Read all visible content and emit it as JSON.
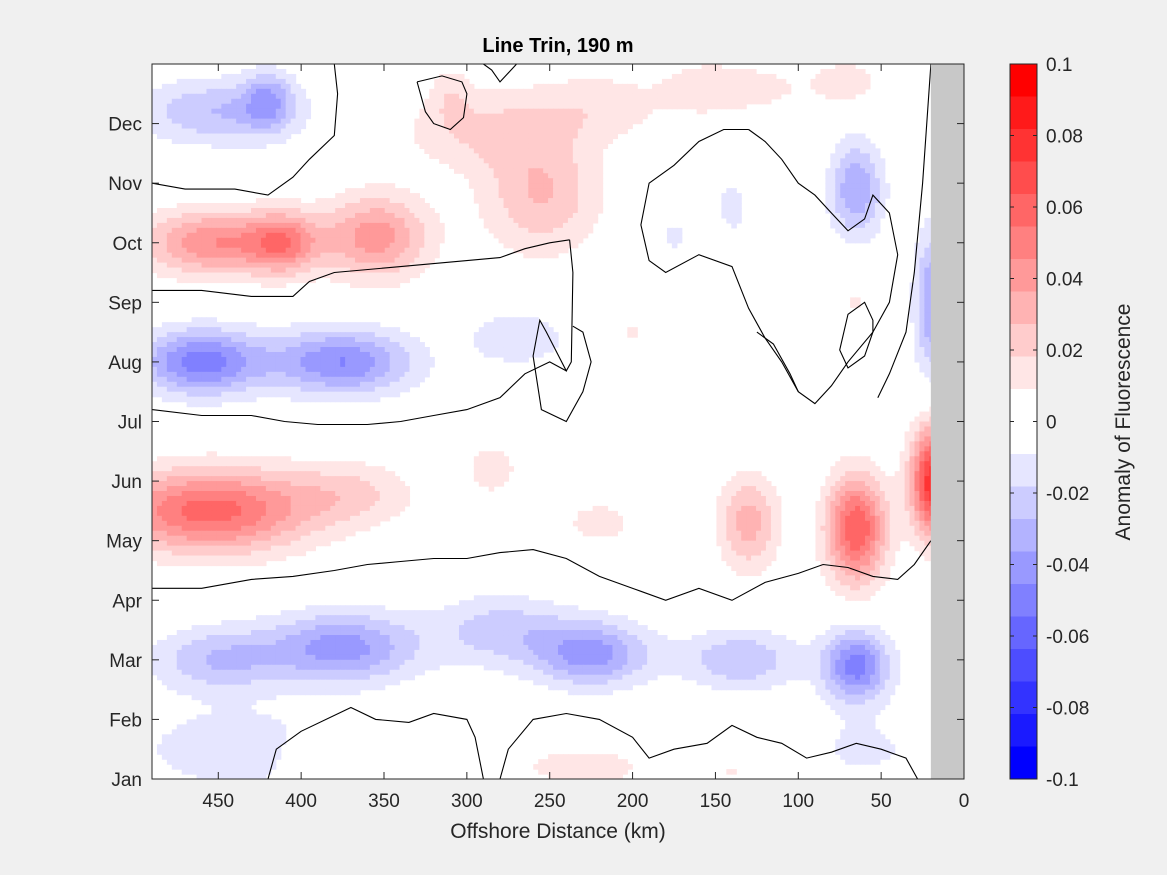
{
  "chart_data": {
    "type": "heatmap",
    "title": "Line Trin, 190 m",
    "xlabel": "Offshore Distance (km)",
    "ylabel": "",
    "xlim": [
      490,
      0
    ],
    "x_ticks": [
      450,
      400,
      350,
      300,
      250,
      200,
      150,
      100,
      50,
      0
    ],
    "y_tick_labels": [
      "Dec",
      "Nov",
      "Oct",
      "Sep",
      "Aug",
      "Jul",
      "Jun",
      "May",
      "Apr",
      "Mar",
      "Feb",
      "Jan"
    ],
    "y_tick_positions": [
      12,
      11,
      10,
      9,
      8,
      7,
      6,
      5,
      4,
      3,
      2,
      1
    ],
    "ylim": [
      1,
      13
    ],
    "land_mask_x_range": [
      20,
      0
    ],
    "land_mask_color": "#c8c8c8",
    "colorbar": {
      "label": "Anomaly of Fluorescence",
      "limits": [
        -0.1,
        0.1
      ],
      "tick_labels": [
        "0.1",
        "0.08",
        "0.06",
        "0.04",
        "0.02",
        "0",
        "-0.02",
        "-0.04",
        "-0.06",
        "-0.08",
        "-0.1"
      ],
      "tick_values": [
        0.1,
        0.08,
        0.06,
        0.04,
        0.02,
        0,
        -0.02,
        -0.04,
        -0.06,
        -0.08,
        -0.1
      ],
      "levels": 20,
      "colors_top_to_bottom": [
        "#ff0000",
        "#ff1a1a",
        "#ff3333",
        "#ff4d4d",
        "#ff6666",
        "#ff8080",
        "#ff9999",
        "#ffb3b3",
        "#ffcccc",
        "#ffe6e6",
        "#ffffff",
        "#ffffff",
        "#e6e6ff",
        "#ccccff",
        "#b3b3ff",
        "#9999ff",
        "#8080ff",
        "#6666ff",
        "#4d4dff",
        "#3333ff",
        "#1a1aff",
        "#0000ff"
      ]
    },
    "blobs": [
      {
        "x": 460,
        "y": 8.0,
        "rx": 38,
        "ry": 0.55,
        "value": -0.055
      },
      {
        "x": 375,
        "y": 8.0,
        "rx": 42,
        "ry": 0.55,
        "value": -0.05
      },
      {
        "x": 270,
        "y": 8.4,
        "rx": 30,
        "ry": 0.45,
        "value": -0.02
      },
      {
        "x": 450,
        "y": 10.0,
        "rx": 45,
        "ry": 0.55,
        "value": 0.05
      },
      {
        "x": 355,
        "y": 10.1,
        "rx": 32,
        "ry": 0.7,
        "value": 0.045
      },
      {
        "x": 410,
        "y": 10.0,
        "rx": 20,
        "ry": 0.5,
        "value": 0.04
      },
      {
        "x": 455,
        "y": 5.5,
        "rx": 60,
        "ry": 0.7,
        "value": 0.065
      },
      {
        "x": 370,
        "y": 5.8,
        "rx": 40,
        "ry": 0.55,
        "value": 0.02
      },
      {
        "x": 450,
        "y": 12.2,
        "rx": 50,
        "ry": 0.55,
        "value": -0.03
      },
      {
        "x": 420,
        "y": 12.4,
        "rx": 15,
        "ry": 0.5,
        "value": -0.03
      },
      {
        "x": 255,
        "y": 10.8,
        "rx": 35,
        "ry": 1.0,
        "value": 0.03
      },
      {
        "x": 290,
        "y": 11.9,
        "rx": 50,
        "ry": 0.7,
        "value": 0.02
      },
      {
        "x": 220,
        "y": 12.3,
        "rx": 40,
        "ry": 0.6,
        "value": 0.015
      },
      {
        "x": 375,
        "y": 3.2,
        "rx": 45,
        "ry": 0.6,
        "value": -0.045
      },
      {
        "x": 450,
        "y": 3.0,
        "rx": 40,
        "ry": 0.55,
        "value": -0.03
      },
      {
        "x": 280,
        "y": 3.5,
        "rx": 40,
        "ry": 0.6,
        "value": -0.025
      },
      {
        "x": 225,
        "y": 3.1,
        "rx": 35,
        "ry": 0.55,
        "value": -0.045
      },
      {
        "x": 135,
        "y": 3.0,
        "rx": 35,
        "ry": 0.5,
        "value": -0.03
      },
      {
        "x": 65,
        "y": 2.9,
        "rx": 20,
        "ry": 0.6,
        "value": -0.055
      },
      {
        "x": 65,
        "y": 5.2,
        "rx": 18,
        "ry": 0.9,
        "value": 0.07
      },
      {
        "x": 130,
        "y": 5.3,
        "rx": 18,
        "ry": 0.8,
        "value": 0.035
      },
      {
        "x": 18,
        "y": 6.0,
        "rx": 14,
        "ry": 0.9,
        "value": 0.09
      },
      {
        "x": 220,
        "y": 5.3,
        "rx": 35,
        "ry": 0.6,
        "value": 0.012
      },
      {
        "x": 285,
        "y": 6.2,
        "rx": 18,
        "ry": 0.5,
        "value": 0.015
      },
      {
        "x": 65,
        "y": 10.9,
        "rx": 16,
        "ry": 0.8,
        "value": -0.04
      },
      {
        "x": 20,
        "y": 9.0,
        "rx": 10,
        "ry": 1.2,
        "value": -0.04
      },
      {
        "x": 140,
        "y": 10.6,
        "rx": 10,
        "ry": 0.5,
        "value": -0.015
      },
      {
        "x": 175,
        "y": 10.1,
        "rx": 12,
        "ry": 0.35,
        "value": -0.012
      },
      {
        "x": 400,
        "y": 1.3,
        "rx": 12,
        "ry": 0.4,
        "value": 0.015
      },
      {
        "x": 230,
        "y": 1.2,
        "rx": 45,
        "ry": 0.4,
        "value": 0.015
      },
      {
        "x": 140,
        "y": 1.1,
        "rx": 25,
        "ry": 0.35,
        "value": 0.01
      },
      {
        "x": 440,
        "y": 1.5,
        "rx": 60,
        "ry": 0.7,
        "value": -0.018
      },
      {
        "x": 60,
        "y": 1.5,
        "rx": 40,
        "ry": 0.6,
        "value": -0.012
      },
      {
        "x": 310,
        "y": 12.5,
        "rx": 12,
        "ry": 0.5,
        "value": 0.012
      },
      {
        "x": 125,
        "y": 12.6,
        "rx": 40,
        "ry": 0.5,
        "value": 0.012
      },
      {
        "x": 160,
        "y": 12.6,
        "rx": 25,
        "ry": 0.5,
        "value": 0.01
      },
      {
        "x": 70,
        "y": 12.7,
        "rx": 20,
        "ry": 0.4,
        "value": 0.015
      },
      {
        "x": 200,
        "y": 8.5,
        "rx": 8,
        "ry": 0.3,
        "value": 0.012
      },
      {
        "x": 65,
        "y": 9.0,
        "rx": 6,
        "ry": 0.2,
        "value": 0.015
      }
    ],
    "contours_zero": [
      [
        [
          490,
          11.0
        ],
        [
          470,
          10.9
        ],
        [
          440,
          10.9
        ],
        [
          420,
          10.8
        ],
        [
          405,
          11.1
        ],
        [
          395,
          11.4
        ],
        [
          380,
          11.8
        ],
        [
          378,
          12.5
        ],
        [
          380,
          13.0
        ]
      ],
      [
        [
          490,
          9.2
        ],
        [
          460,
          9.2
        ],
        [
          430,
          9.1
        ],
        [
          405,
          9.1
        ],
        [
          395,
          9.35
        ],
        [
          380,
          9.5
        ],
        [
          340,
          9.6
        ],
        [
          300,
          9.7
        ],
        [
          280,
          9.75
        ],
        [
          265,
          9.9
        ],
        [
          250,
          10.0
        ],
        [
          238,
          10.05
        ]
      ],
      [
        [
          238,
          10.05
        ],
        [
          236,
          9.5
        ],
        [
          237,
          8.0
        ],
        [
          240,
          7.85
        ],
        [
          252,
          8.5
        ],
        [
          256,
          8.7
        ],
        [
          260,
          8.1
        ],
        [
          255,
          7.2
        ],
        [
          240,
          7.0
        ],
        [
          230,
          7.5
        ],
        [
          225,
          8.0
        ],
        [
          230,
          8.5
        ],
        [
          236,
          8.6
        ]
      ],
      [
        [
          490,
          7.2
        ],
        [
          460,
          7.1
        ],
        [
          430,
          7.1
        ],
        [
          410,
          7.0
        ],
        [
          390,
          6.95
        ],
        [
          360,
          6.95
        ],
        [
          340,
          7.0
        ],
        [
          320,
          7.1
        ],
        [
          300,
          7.2
        ],
        [
          280,
          7.4
        ],
        [
          265,
          7.8
        ],
        [
          250,
          8.0
        ],
        [
          240,
          7.85
        ]
      ],
      [
        [
          490,
          4.2
        ],
        [
          460,
          4.2
        ],
        [
          430,
          4.35
        ],
        [
          405,
          4.4
        ],
        [
          380,
          4.5
        ],
        [
          360,
          4.6
        ],
        [
          340,
          4.65
        ],
        [
          320,
          4.7
        ],
        [
          300,
          4.7
        ],
        [
          280,
          4.8
        ],
        [
          260,
          4.85
        ],
        [
          240,
          4.7
        ],
        [
          220,
          4.4
        ],
        [
          195,
          4.15
        ],
        [
          180,
          4.0
        ],
        [
          160,
          4.2
        ],
        [
          140,
          4.0
        ],
        [
          120,
          4.3
        ],
        [
          100,
          4.45
        ],
        [
          85,
          4.6
        ],
        [
          70,
          4.55
        ],
        [
          55,
          4.4
        ],
        [
          40,
          4.35
        ],
        [
          30,
          4.6
        ],
        [
          20,
          5.0
        ]
      ],
      [
        [
          420,
          1.0
        ],
        [
          415,
          1.5
        ],
        [
          400,
          1.8
        ],
        [
          370,
          2.2
        ],
        [
          355,
          2.0
        ],
        [
          335,
          1.95
        ],
        [
          320,
          2.1
        ],
        [
          300,
          2.0
        ],
        [
          295,
          1.7
        ],
        [
          290,
          1.0
        ]
      ],
      [
        [
          280,
          1.0
        ],
        [
          275,
          1.5
        ],
        [
          260,
          2.0
        ],
        [
          240,
          2.1
        ],
        [
          220,
          2.0
        ],
        [
          200,
          1.7
        ],
        [
          190,
          1.35
        ],
        [
          175,
          1.5
        ],
        [
          155,
          1.6
        ],
        [
          140,
          1.9
        ],
        [
          125,
          1.7
        ],
        [
          110,
          1.6
        ],
        [
          95,
          1.35
        ],
        [
          80,
          1.45
        ],
        [
          65,
          1.6
        ],
        [
          50,
          1.5
        ],
        [
          35,
          1.35
        ],
        [
          28,
          1.0
        ]
      ],
      [
        [
          270,
          13.0
        ],
        [
          280,
          12.7
        ],
        [
          285,
          12.9
        ],
        [
          290,
          13.0
        ]
      ],
      [
        [
          330,
          12.7
        ],
        [
          325,
          12.2
        ],
        [
          320,
          12.0
        ],
        [
          310,
          11.9
        ],
        [
          302,
          12.1
        ],
        [
          300,
          12.5
        ],
        [
          303,
          12.7
        ],
        [
          315,
          12.8
        ],
        [
          330,
          12.7
        ]
      ],
      [
        [
          130,
          11.9
        ],
        [
          120,
          11.7
        ],
        [
          110,
          11.4
        ],
        [
          100,
          11.0
        ],
        [
          90,
          10.8
        ],
        [
          80,
          10.5
        ],
        [
          70,
          10.2
        ],
        [
          60,
          10.4
        ],
        [
          55,
          10.8
        ],
        [
          45,
          10.5
        ],
        [
          40,
          9.8
        ],
        [
          45,
          9.0
        ],
        [
          55,
          8.5
        ],
        [
          70,
          8.0
        ],
        [
          80,
          7.6
        ],
        [
          90,
          7.3
        ],
        [
          100,
          7.5
        ],
        [
          110,
          8.0
        ],
        [
          120,
          8.4
        ],
        [
          130,
          8.9
        ],
        [
          140,
          9.6
        ],
        [
          160,
          9.8
        ],
        [
          180,
          9.5
        ],
        [
          190,
          9.7
        ],
        [
          195,
          10.3
        ],
        [
          190,
          11.0
        ],
        [
          175,
          11.3
        ],
        [
          160,
          11.7
        ],
        [
          145,
          11.9
        ],
        [
          130,
          11.9
        ]
      ],
      [
        [
          100,
          7.5
        ],
        [
          105,
          7.8
        ],
        [
          115,
          8.3
        ],
        [
          125,
          8.5
        ]
      ],
      [
        [
          55,
          8.5
        ],
        [
          60,
          8.1
        ],
        [
          70,
          7.9
        ],
        [
          75,
          8.2
        ],
        [
          70,
          8.8
        ],
        [
          60,
          9.0
        ],
        [
          55,
          8.7
        ],
        [
          55,
          8.5
        ]
      ],
      [
        [
          20,
          13.0
        ],
        [
          25,
          11.0
        ],
        [
          30,
          9.5
        ],
        [
          35,
          8.5
        ],
        [
          45,
          7.8
        ],
        [
          52,
          7.4
        ]
      ]
    ]
  }
}
